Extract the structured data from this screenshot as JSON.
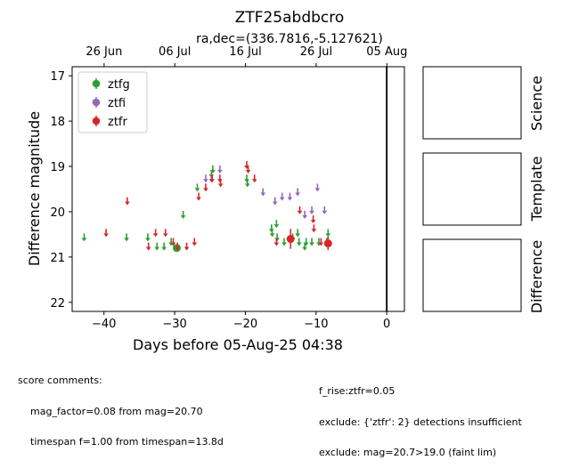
{
  "title": "ZTF25abdbcro",
  "subtitle": "ra,dec=(336.7816,-5.127621)",
  "panels": {
    "science": "Science",
    "template": "Template",
    "difference": "Difference"
  },
  "score": {
    "heading": "score comments:",
    "left": [
      "mag_factor=0.08 from mag=20.70",
      "timespan f=1.00 from timespan=13.8d"
    ],
    "right": [
      "f_rise:ztfr=0.05",
      "exclude: {'ztfr': 2} detections insufficient",
      "exclude: mag=20.7>19.0 (faint lim)"
    ]
  },
  "colors": {
    "ztfg": "#2ca02c",
    "ztfi": "#9467bd",
    "ztfr": "#d62728"
  },
  "chart_data": {
    "type": "scatter",
    "xlabel": "Days before 05-Aug-25 04:38",
    "ylabel": "Difference magnitude",
    "xlim": [
      -44.5,
      2.5
    ],
    "ylim": [
      22.2,
      16.8
    ],
    "y_inverted": true,
    "xticks": [
      -40,
      -30,
      -20,
      -10,
      0
    ],
    "yticks": [
      17,
      18,
      19,
      20,
      21,
      22
    ],
    "top_axis_ticks": [
      {
        "x": -39.98,
        "label": "26 Jun"
      },
      {
        "x": -29.98,
        "label": "06 Jul"
      },
      {
        "x": -19.98,
        "label": "16 Jul"
      },
      {
        "x": -9.98,
        "label": "26 Jul"
      },
      {
        "x": 0.02,
        "label": "05 Aug"
      }
    ],
    "vline_x": 0,
    "legend": {
      "placement": "top-left",
      "entries": [
        "ztfg",
        "ztfi",
        "ztfr"
      ]
    },
    "series": [
      {
        "name": "ztfg",
        "upper_limits": [
          [
            -42.8,
            20.5
          ],
          [
            -36.8,
            20.5
          ],
          [
            -33.8,
            20.5
          ],
          [
            -32.5,
            20.7
          ],
          [
            -31.5,
            20.7
          ],
          [
            -30.5,
            20.6
          ],
          [
            -28.8,
            20.0
          ],
          [
            -26.8,
            19.4
          ],
          [
            -24.8,
            19.1
          ],
          [
            -24.6,
            19.0
          ],
          [
            -19.8,
            19.2
          ],
          [
            -19.7,
            19.3
          ],
          [
            -16.3,
            20.3
          ],
          [
            -16.2,
            20.4
          ],
          [
            -15.6,
            20.2
          ],
          [
            -15.5,
            20.5
          ],
          [
            -14.5,
            20.6
          ],
          [
            -13.3,
            20.5
          ],
          [
            -12.6,
            20.4
          ],
          [
            -12.4,
            20.6
          ],
          [
            -11.6,
            20.7
          ],
          [
            -11.4,
            20.6
          ],
          [
            -10.6,
            20.6
          ],
          [
            -9.6,
            20.6
          ],
          [
            -8.5,
            20.6
          ],
          [
            -8.3,
            20.4
          ]
        ],
        "detections": [
          [
            -29.7,
            20.8,
            0.08
          ]
        ]
      },
      {
        "name": "ztfi",
        "upper_limits": [
          [
            -25.6,
            19.2
          ],
          [
            -24.8,
            19.2
          ],
          [
            -23.6,
            19.0
          ],
          [
            -17.5,
            19.5
          ],
          [
            -15.8,
            19.7
          ],
          [
            -14.8,
            19.6
          ],
          [
            -13.7,
            19.6
          ],
          [
            -12.6,
            19.5
          ],
          [
            -11.6,
            20.0
          ],
          [
            -10.6,
            19.9
          ],
          [
            -9.8,
            19.4
          ],
          [
            -8.8,
            19.9
          ]
        ],
        "detections": []
      },
      {
        "name": "ztfr",
        "upper_limits": [
          [
            -39.7,
            20.4
          ],
          [
            -36.7,
            19.7
          ],
          [
            -33.7,
            20.7
          ],
          [
            -32.7,
            20.4
          ],
          [
            -31.3,
            20.4
          ],
          [
            -30.2,
            20.6
          ],
          [
            -29.6,
            20.7
          ],
          [
            -28.3,
            20.7
          ],
          [
            -27.2,
            20.6
          ],
          [
            -26.6,
            19.6
          ],
          [
            -25.6,
            19.4
          ],
          [
            -24.7,
            19.2
          ],
          [
            -23.6,
            19.2
          ],
          [
            -23.5,
            19.3
          ],
          [
            -19.8,
            18.9
          ],
          [
            -19.6,
            19.0
          ],
          [
            -18.7,
            19.2
          ],
          [
            -15.6,
            20.6
          ],
          [
            -12.3,
            19.9
          ],
          [
            -10.4,
            20.1
          ],
          [
            -10.3,
            20.3
          ],
          [
            -9.3,
            20.6
          ]
        ],
        "detections": [
          [
            -13.6,
            20.6,
            0.22
          ],
          [
            -8.3,
            20.7,
            0.15
          ]
        ]
      }
    ]
  }
}
